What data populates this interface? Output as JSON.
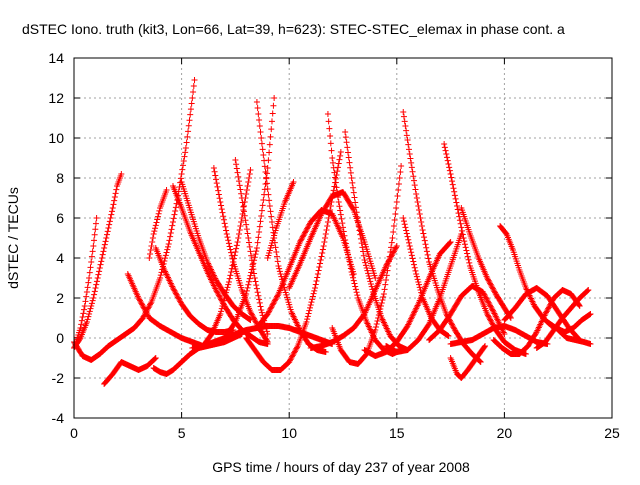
{
  "chart_data": {
    "type": "scatter",
    "title": "dSTEC Iono. truth (kit3, Lon=66, Lat=39, h=623): STEC-STEC_elemax in phase cont. a",
    "xlabel": "GPS time / hours of day 237 of year 2008",
    "ylabel": "dSTEC  / TECUs",
    "xlim": [
      0,
      25
    ],
    "ylim": [
      -4,
      14
    ],
    "xticks": [
      "0",
      "5",
      "10",
      "15",
      "20",
      "25"
    ],
    "yticks": [
      "-4",
      "-2",
      "0",
      "2",
      "4",
      "6",
      "8",
      "10",
      "12",
      "14"
    ],
    "grid": true,
    "marker": "+",
    "color": "#ff0000",
    "series": [
      {
        "x": [
          0.0,
          0.3,
          0.6,
          0.9,
          1.2,
          1.5,
          1.8,
          2.0,
          2.2
        ],
        "y": [
          -0.5,
          0.0,
          0.8,
          2.0,
          3.5,
          5.0,
          6.5,
          7.6,
          8.2
        ]
      },
      {
        "x": [
          0.1,
          0.3,
          0.5,
          0.7,
          0.9,
          1.05
        ],
        "y": [
          -0.2,
          0.5,
          1.6,
          3.0,
          4.6,
          6.0
        ]
      },
      {
        "x": [
          0.0,
          0.4,
          0.8,
          1.2,
          1.6,
          2.0,
          2.4,
          2.8,
          3.2,
          3.6,
          4.0,
          4.4,
          4.8,
          5.2,
          5.5,
          5.6
        ],
        "y": [
          -0.2,
          -0.9,
          -1.1,
          -0.8,
          -0.4,
          -0.1,
          0.2,
          0.5,
          1.0,
          1.8,
          3.0,
          4.7,
          6.9,
          9.5,
          12.0,
          12.9
        ]
      },
      {
        "x": [
          1.4,
          1.8,
          2.2,
          2.6,
          3.0,
          3.4,
          3.8
        ],
        "y": [
          -2.3,
          -1.8,
          -1.2,
          -1.4,
          -1.6,
          -1.4,
          -1.0
        ]
      },
      {
        "x": [
          2.5,
          3.0,
          3.5,
          4.0,
          4.5,
          5.0,
          5.5,
          6.0,
          6.5,
          7.0
        ],
        "y": [
          3.2,
          2.0,
          1.0,
          0.6,
          0.3,
          0.0,
          -0.2,
          -0.4,
          -0.3,
          -0.2
        ]
      },
      {
        "x": [
          3.5,
          3.7,
          4.0,
          4.3
        ],
        "y": [
          4.0,
          5.2,
          6.5,
          7.4
        ]
      },
      {
        "x": [
          3.7,
          4.0,
          4.3,
          4.6,
          5.0,
          5.4,
          5.8,
          6.2,
          6.6,
          7.0,
          7.4,
          7.8
        ],
        "y": [
          -1.5,
          -1.7,
          -1.8,
          -1.6,
          -1.2,
          -0.8,
          -0.5,
          -0.4,
          -0.3,
          -0.2,
          0.0,
          0.2
        ]
      },
      {
        "x": [
          4.6,
          5.0,
          5.4,
          5.8,
          6.2,
          6.6,
          7.0,
          7.4,
          7.8,
          8.2,
          8.6,
          9.0
        ],
        "y": [
          7.6,
          6.5,
          5.3,
          4.3,
          3.3,
          2.4,
          1.6,
          0.9,
          0.4,
          0.1,
          -0.2,
          -0.3
        ]
      },
      {
        "x": [
          5.0,
          5.4,
          5.8,
          6.2,
          6.6,
          7.0,
          7.4,
          7.8,
          8.2
        ],
        "y": [
          7.8,
          6.4,
          5.0,
          3.8,
          2.9,
          2.2,
          1.6,
          1.2,
          0.9
        ]
      },
      {
        "x": [
          3.8,
          4.2,
          4.6,
          5.0,
          5.4,
          5.8,
          6.2,
          6.6,
          7.0,
          7.4
        ],
        "y": [
          4.5,
          3.4,
          2.5,
          1.7,
          1.1,
          0.7,
          0.4,
          0.3,
          0.3,
          0.4
        ]
      },
      {
        "x": [
          6.5,
          6.8,
          7.1,
          7.4,
          7.8,
          8.2,
          8.6,
          9.0
        ],
        "y": [
          8.5,
          6.8,
          5.2,
          3.8,
          2.4,
          1.3,
          0.5,
          -0.2
        ]
      },
      {
        "x": [
          7.5,
          7.8,
          8.1,
          8.4,
          8.7,
          9.0
        ],
        "y": [
          8.9,
          7.0,
          5.0,
          3.0,
          1.4,
          0.2
        ]
      },
      {
        "x": [
          6.0,
          6.4,
          6.8,
          7.2,
          7.6,
          8.0,
          8.2
        ],
        "y": [
          -0.4,
          0.2,
          1.2,
          2.8,
          4.8,
          7.2,
          8.4
        ]
      },
      {
        "x": [
          7.0,
          7.5,
          8.0,
          8.5,
          9.0,
          9.3
        ],
        "y": [
          0.0,
          0.8,
          2.2,
          4.5,
          8.5,
          12.0
        ]
      },
      {
        "x": [
          8.5,
          8.7,
          8.9,
          9.1,
          9.3,
          9.5,
          9.8,
          10.1,
          10.5,
          10.9,
          11.3,
          11.7
        ],
        "y": [
          11.8,
          10.0,
          8.3,
          6.6,
          5.0,
          3.6,
          2.4,
          1.3,
          0.4,
          -0.3,
          -0.6,
          -0.7
        ]
      },
      {
        "x": [
          5.5,
          6.0,
          6.5,
          7.0,
          7.5,
          8.0,
          8.5,
          9.0,
          9.5,
          10.0,
          10.5,
          11.0,
          11.5,
          12.0
        ],
        "y": [
          -0.5,
          -0.4,
          -0.2,
          0.0,
          0.2,
          0.4,
          0.5,
          0.6,
          0.6,
          0.5,
          0.3,
          0.1,
          -0.1,
          -0.3
        ]
      },
      {
        "x": [
          8.0,
          8.4,
          8.8,
          9.2,
          9.6,
          10.0,
          10.4,
          10.8,
          11.2,
          11.6,
          12.0,
          12.4
        ],
        "y": [
          0.0,
          -0.6,
          -1.2,
          -1.6,
          -1.6,
          -1.2,
          -0.4,
          0.8,
          2.5,
          4.6,
          7.0,
          9.3
        ]
      },
      {
        "x": [
          9.0,
          9.4,
          9.8,
          10.2
        ],
        "y": [
          4.0,
          5.5,
          6.8,
          7.8
        ]
      },
      {
        "x": [
          8.5,
          9.0,
          9.5,
          10.0,
          10.5,
          11.0,
          11.5,
          12.0,
          12.5,
          13.0
        ],
        "y": [
          0.5,
          1.2,
          2.2,
          3.5,
          4.8,
          5.8,
          6.4,
          6.2,
          5.0,
          3.2
        ]
      },
      {
        "x": [
          10.0,
          10.5,
          11.0,
          11.5,
          12.0,
          12.5,
          13.0,
          13.5,
          14.0
        ],
        "y": [
          2.5,
          3.7,
          5.0,
          6.2,
          7.1,
          7.3,
          6.4,
          4.8,
          3.0
        ]
      },
      {
        "x": [
          11.8,
          12.0,
          12.3,
          12.6,
          12.9,
          13.2,
          13.6,
          14.0,
          14.4,
          14.8,
          15.2
        ],
        "y": [
          11.2,
          9.0,
          6.8,
          4.9,
          3.3,
          2.0,
          0.8,
          -0.1,
          -0.6,
          -0.8,
          -0.6
        ]
      },
      {
        "x": [
          12.6,
          12.9,
          13.2,
          13.5,
          13.9,
          14.3,
          14.7,
          15.1,
          15.5
        ],
        "y": [
          10.3,
          8.0,
          5.8,
          3.9,
          2.3,
          1.0,
          0.1,
          -0.4,
          -0.6
        ]
      },
      {
        "x": [
          12.0,
          12.4,
          12.8,
          13.2,
          13.6,
          14.0,
          14.4,
          14.8,
          15.2
        ],
        "y": [
          0.5,
          -0.6,
          -1.2,
          -1.3,
          -0.8,
          0.4,
          2.2,
          5.0,
          8.6
        ]
      },
      {
        "x": [
          11.0,
          11.5,
          12.0,
          12.5,
          13.0,
          13.5,
          14.0,
          14.5,
          15.0
        ],
        "y": [
          -0.5,
          -0.4,
          -0.2,
          0.1,
          0.5,
          1.2,
          2.4,
          3.6,
          4.6
        ]
      },
      {
        "x": [
          15.3,
          15.6,
          15.9,
          16.2,
          16.5,
          16.9,
          17.3,
          17.7,
          18.1,
          18.5,
          18.9
        ],
        "y": [
          11.3,
          9.2,
          7.2,
          5.4,
          3.8,
          2.4,
          1.2,
          0.4,
          -0.3,
          -0.8,
          -1.2
        ]
      },
      {
        "x": [
          15.3,
          15.6,
          15.9,
          16.2,
          16.6,
          17.0,
          17.4
        ],
        "y": [
          6.0,
          4.6,
          3.2,
          2.0,
          1.0,
          0.4,
          0.1
        ]
      },
      {
        "x": [
          13.5,
          14.0,
          14.5,
          15.0,
          15.5,
          16.0,
          16.5,
          17.0,
          17.5
        ],
        "y": [
          -0.6,
          -0.9,
          -0.7,
          -0.2,
          0.6,
          1.7,
          3.0,
          4.2,
          4.8
        ]
      },
      {
        "x": [
          14.5,
          15.0,
          15.5,
          16.0,
          16.5,
          17.0,
          17.5,
          18.0
        ],
        "y": [
          -0.4,
          -0.7,
          -0.6,
          -0.1,
          0.7,
          2.0,
          3.6,
          5.2
        ]
      },
      {
        "x": [
          17.2,
          17.5,
          17.8,
          18.1,
          18.4,
          18.8,
          19.2,
          19.6,
          20.0,
          20.5,
          21.0
        ],
        "y": [
          9.7,
          8.2,
          6.6,
          5.0,
          3.6,
          2.3,
          1.2,
          0.4,
          -0.2,
          -0.6,
          -0.8
        ]
      },
      {
        "x": [
          16.5,
          17.0,
          17.5,
          18.0,
          18.5,
          19.0,
          19.5,
          20.0
        ],
        "y": [
          -0.1,
          0.4,
          1.2,
          2.1,
          2.6,
          2.3,
          1.3,
          0.2
        ]
      },
      {
        "x": [
          17.5,
          17.8,
          18.0,
          18.3,
          18.7,
          19.1
        ],
        "y": [
          -1.0,
          -1.8,
          -2.0,
          -1.6,
          -1.0,
          -0.4
        ]
      },
      {
        "x": [
          18.0,
          18.4,
          18.8,
          19.2,
          19.6,
          20.0,
          20.3
        ],
        "y": [
          6.5,
          5.2,
          4.0,
          3.0,
          2.2,
          1.5,
          1.0
        ]
      },
      {
        "x": [
          17.5,
          18.0,
          18.5,
          19.0,
          19.5,
          20.0,
          20.5,
          21.0,
          21.5,
          22.0
        ],
        "y": [
          -0.3,
          -0.2,
          -0.1,
          0.2,
          0.5,
          0.6,
          0.4,
          0.1,
          -0.2,
          -0.3
        ]
      },
      {
        "x": [
          19.8,
          20.1,
          20.4,
          20.7,
          21.0,
          21.4,
          21.8,
          22.2,
          22.6
        ],
        "y": [
          5.6,
          5.2,
          4.4,
          3.4,
          2.5,
          1.6,
          1.0,
          0.6,
          0.4
        ]
      },
      {
        "x": [
          19.5,
          19.9,
          20.3,
          20.7,
          21.1,
          21.5,
          21.9,
          22.3,
          22.7,
          23.1,
          23.5
        ],
        "y": [
          -0.1,
          -0.5,
          -0.8,
          -0.8,
          -0.4,
          0.3,
          1.2,
          2.0,
          2.4,
          2.2,
          1.6
        ]
      },
      {
        "x": [
          20.0,
          20.5,
          21.0,
          21.5,
          22.0,
          22.5,
          23.0,
          23.5
        ],
        "y": [
          0.9,
          1.5,
          2.2,
          2.5,
          2.1,
          1.3,
          0.5,
          -0.1
        ]
      },
      {
        "x": [
          21.5,
          21.9,
          22.3,
          22.7,
          23.1,
          23.5,
          23.9
        ],
        "y": [
          -0.5,
          -0.2,
          0.4,
          1.0,
          1.5,
          2.0,
          2.4
        ]
      },
      {
        "x": [
          22.0,
          22.4,
          22.8,
          23.2,
          23.6,
          24.0
        ],
        "y": [
          0.8,
          0.5,
          0.3,
          0.5,
          0.9,
          1.2
        ]
      },
      {
        "x": [
          22.5,
          22.9,
          23.3,
          23.7,
          24.0
        ],
        "y": [
          0.4,
          0.0,
          -0.1,
          -0.2,
          -0.3
        ]
      }
    ]
  }
}
